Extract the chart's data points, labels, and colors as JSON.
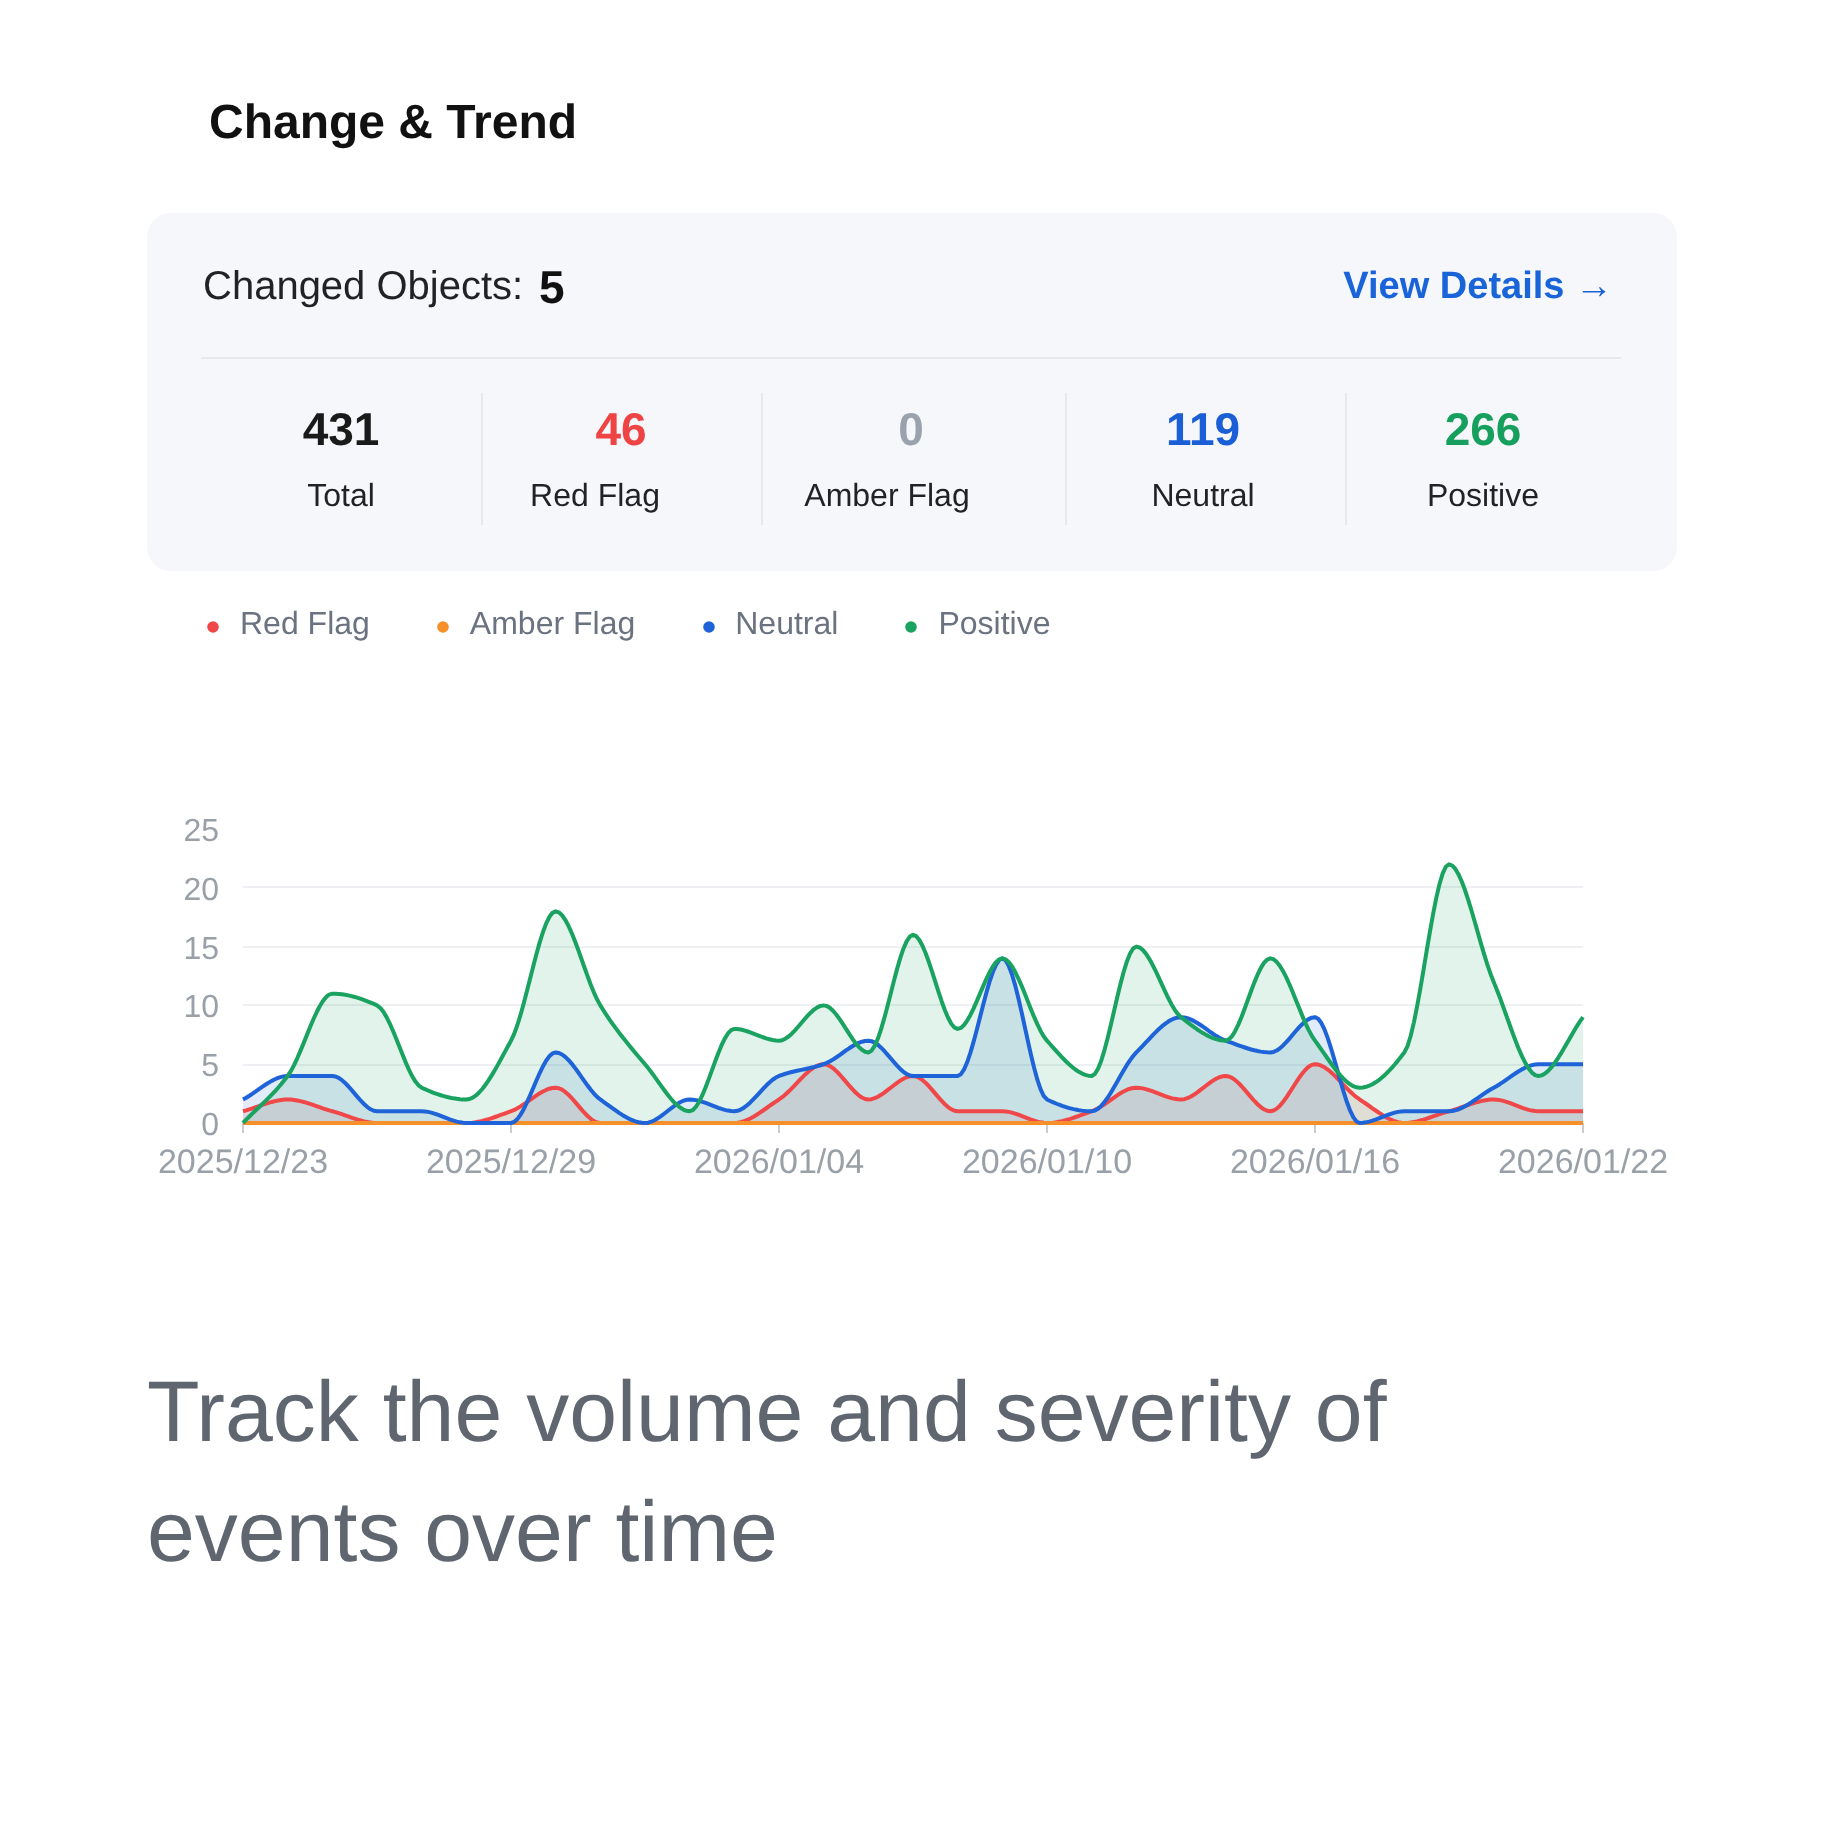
{
  "chart_data": {
    "type": "area",
    "title": "Change & Trend",
    "annotations": [
      "Changed Objects:",
      "5",
      "View Details →",
      "431",
      "Total",
      "46",
      "Red Flag",
      "0",
      "Amber Flag",
      "119",
      "Neutral",
      "266",
      "Positive",
      "Track the volume and severity of events over time"
    ],
    "x": [
      "2025-12-23",
      "2025-12-24",
      "2025-12-25",
      "2025-12-26",
      "2025-12-27",
      "2025-12-28",
      "2025-12-29",
      "2025-12-30",
      "2025-12-31",
      "2026-01-01",
      "2026-01-02",
      "2026-01-03",
      "2026-01-04",
      "2026-01-05",
      "2026-01-06",
      "2026-01-07",
      "2026-01-08",
      "2026-01-09",
      "2026-01-10",
      "2026-01-11",
      "2026-01-12",
      "2026-01-13",
      "2026-01-14",
      "2026-01-15",
      "2026-01-16",
      "2026-01-17",
      "2026-01-18",
      "2026-01-19",
      "2026-01-20",
      "2026-01-21",
      "2026-01-22"
    ],
    "series": [
      {
        "name": "Red Flag",
        "color": "#f04848",
        "values": [
          1,
          2,
          1,
          0,
          0,
          0,
          1,
          3,
          0,
          0,
          0,
          0,
          2,
          5,
          2,
          4,
          1,
          1,
          0,
          1,
          3,
          2,
          4,
          1,
          5,
          2,
          0,
          1,
          2,
          1,
          1
        ]
      },
      {
        "name": "Amber Flag",
        "type": "line",
        "color": "#f5902a",
        "values": [
          0,
          0,
          0,
          0,
          0,
          0,
          0,
          0,
          0,
          0,
          0,
          0,
          0,
          0,
          0,
          0,
          0,
          0,
          0,
          0,
          0,
          0,
          0,
          0,
          0,
          0,
          0,
          0,
          0,
          0,
          0
        ]
      },
      {
        "name": "Neutral",
        "color": "#1e63d8",
        "values": [
          2,
          4,
          4,
          1,
          1,
          0,
          0,
          6,
          2,
          0,
          2,
          1,
          4,
          5,
          7,
          4,
          4,
          14,
          2,
          1,
          6,
          9,
          7,
          6,
          9,
          0,
          1,
          1,
          3,
          5,
          5
        ]
      },
      {
        "name": "Positive",
        "color": "#1aa260",
        "values": [
          0,
          4,
          11,
          10,
          3,
          2,
          7,
          18,
          10,
          5,
          1,
          8,
          7,
          10,
          6,
          16,
          8,
          14,
          7,
          4,
          15,
          9,
          7,
          14,
          7,
          3,
          6,
          22,
          12,
          4,
          9
        ]
      }
    ],
    "xlim": [
      "2025-12-23",
      "2026-01-22"
    ],
    "xticks": [
      {
        "value": "2025-12-23",
        "label": "2025/12/23"
      },
      {
        "value": "2025-12-29",
        "label": "2025/12/29"
      },
      {
        "value": "2026-01-04",
        "label": "2026/01/04"
      },
      {
        "value": "2026-01-10",
        "label": "2026/01/10"
      },
      {
        "value": "2026-01-16",
        "label": "2026/01/16"
      },
      {
        "value": "2026-01-22",
        "label": "2026/01/22"
      }
    ],
    "ylim": [
      0,
      25
    ],
    "yticks": [
      0,
      5,
      10,
      15,
      20,
      25
    ],
    "grid": "y",
    "legend": "top left"
  }
}
